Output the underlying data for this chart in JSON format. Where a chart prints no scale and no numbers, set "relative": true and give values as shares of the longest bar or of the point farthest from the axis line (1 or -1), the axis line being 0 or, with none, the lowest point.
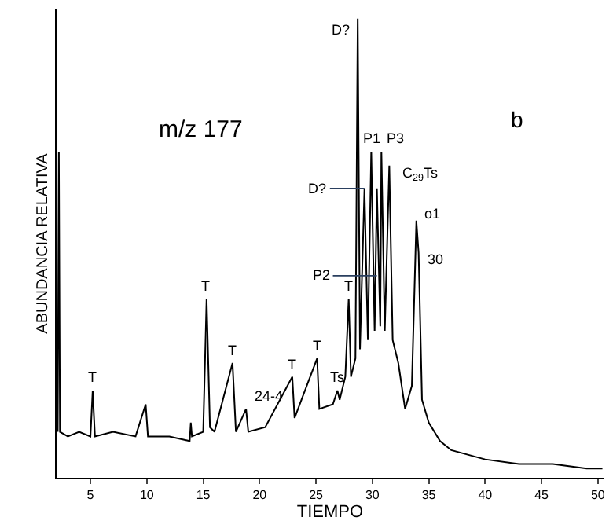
{
  "chart_data": {
    "type": "line",
    "relative": true,
    "xlabel": "TIEMPO",
    "ylabel": "ABUNDANCIA RELATIVA",
    "x": [
      2.1,
      2.2,
      2.3,
      3,
      4,
      5,
      5.2,
      5.4,
      7,
      9,
      9.9,
      10.1,
      12,
      13.8,
      13.9,
      14,
      15,
      15.3,
      15.6,
      16,
      17.6,
      17.9,
      18.8,
      19,
      20.5,
      22.9,
      23.1,
      25.1,
      25.3,
      26.5,
      26.9,
      27.1,
      27.6,
      27.9,
      28.1,
      28.5,
      28.7,
      28.9,
      29.3,
      29.6,
      29.9,
      30.2,
      30.4,
      30.7,
      30.8,
      31.1,
      31.5,
      31.8,
      32.3,
      32.9,
      33.5,
      33.9,
      34.1,
      34.4,
      35,
      36,
      37,
      40,
      43,
      46,
      49,
      50.4
    ],
    "series": [
      {
        "color": "#000000",
        "values": [
          0.1,
          0.71,
          0.1,
          0.09,
          0.1,
          0.09,
          0.19,
          0.09,
          0.1,
          0.09,
          0.16,
          0.09,
          0.09,
          0.08,
          0.12,
          0.09,
          0.1,
          0.39,
          0.11,
          0.1,
          0.25,
          0.1,
          0.15,
          0.1,
          0.11,
          0.22,
          0.13,
          0.26,
          0.15,
          0.16,
          0.19,
          0.17,
          0.22,
          0.39,
          0.22,
          0.26,
          1.0,
          0.28,
          0.63,
          0.3,
          0.71,
          0.32,
          0.63,
          0.33,
          0.71,
          0.32,
          0.68,
          0.3,
          0.25,
          0.15,
          0.2,
          0.56,
          0.49,
          0.17,
          0.12,
          0.08,
          0.06,
          0.04,
          0.03,
          0.03,
          0.02,
          0.02
        ]
      }
    ],
    "xlim": [
      2,
      50.5
    ],
    "xticks": [
      5,
      10,
      15,
      20,
      25,
      30,
      35,
      40,
      45,
      50
    ],
    "marker": "none",
    "line_style": "solid",
    "annotations": [
      "m/z 177",
      "b",
      {
        "text": "T",
        "x": 5.2,
        "y": 0.19
      },
      {
        "text": "T",
        "x": 15.3,
        "y": 0.39
      },
      {
        "text": "T",
        "x": 17.6,
        "y": 0.25
      },
      {
        "text": "24-4",
        "x": 18.8,
        "y": 0.15
      },
      {
        "text": "T",
        "x": 22.9,
        "y": 0.22
      },
      {
        "text": "T",
        "x": 25.1,
        "y": 0.26
      },
      {
        "text": "Ts",
        "x": 26.9,
        "y": 0.19
      },
      {
        "text": "T",
        "x": 27.9,
        "y": 0.39
      },
      {
        "text": "D?",
        "x": 28.7,
        "y": 1.0
      },
      {
        "text": "D?",
        "x": 29.3,
        "y": 0.63
      },
      {
        "text": "P1",
        "x": 29.9,
        "y": 0.71
      },
      {
        "text": "P2",
        "x": 30.4,
        "y": 0.44
      },
      {
        "text": "P3",
        "x": 30.8,
        "y": 0.71
      },
      {
        "text": "C$_{29}$Ts",
        "x": 31.5,
        "y": 0.68
      },
      {
        "text": "o1",
        "x": 33.9,
        "y": 0.56
      },
      {
        "text": "30",
        "x": 34.1,
        "y": 0.49
      }
    ]
  }
}
